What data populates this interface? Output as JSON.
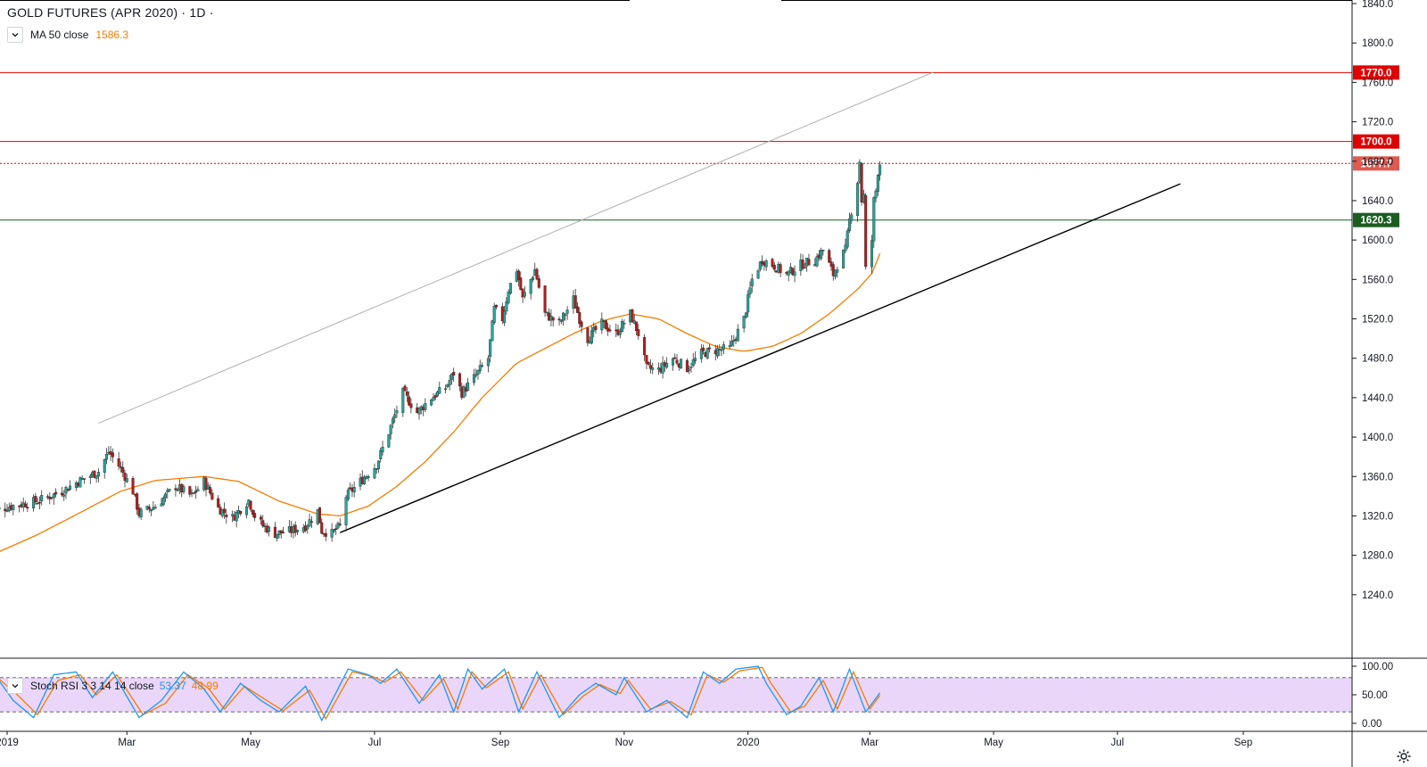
{
  "header": {
    "title": "GOLD FUTURES (APR 2020) · 1D ·",
    "ma_label": "MA 50 close",
    "ma_value": "1586.3",
    "stoch_label": "Stoch RSI 3 3 14 14 close",
    "stoch_k": "53.37",
    "stoch_d": "48.99"
  },
  "colors": {
    "up": "#26a69a",
    "down": "#b71c1c",
    "ma": "#f57c00",
    "resistance": "#e00000",
    "support_green": "#1b5e20",
    "stoch_k": "#2196f3",
    "stoch_d": "#f57c00",
    "stoch_band": "#e1c4f5"
  },
  "chart_data": {
    "type": "candlestick",
    "price_axis": {
      "min": 1200,
      "max": 1840,
      "ticks": [
        1240,
        1280,
        1320,
        1360,
        1400,
        1440,
        1480,
        1520,
        1560,
        1600,
        1640,
        1680,
        1720,
        1760,
        1800,
        1840
      ]
    },
    "time_axis": {
      "ticks": [
        {
          "label": "2019",
          "date": "2019-01-01"
        },
        {
          "label": "Mar",
          "date": "2019-03-01"
        },
        {
          "label": "May",
          "date": "2019-05-01"
        },
        {
          "label": "Jul",
          "date": "2019-07-01"
        },
        {
          "label": "Sep",
          "date": "2019-09-01"
        },
        {
          "label": "Nov",
          "date": "2019-11-01"
        },
        {
          "label": "2020",
          "date": "2020-01-01"
        },
        {
          "label": "Mar",
          "date": "2020-03-01"
        },
        {
          "label": "May",
          "date": "2020-05-01"
        },
        {
          "label": "Jul",
          "date": "2020-07-01"
        },
        {
          "label": "Sep",
          "date": "2020-09-01"
        }
      ]
    },
    "price_anchors": [
      [
        "2018-12-24",
        1325
      ],
      [
        "2019-01-03",
        1330
      ],
      [
        "2019-01-16",
        1335
      ],
      [
        "2019-01-28",
        1345
      ],
      [
        "2019-02-05",
        1355
      ],
      [
        "2019-02-15",
        1365
      ],
      [
        "2019-02-20",
        1385
      ],
      [
        "2019-02-26",
        1368
      ],
      [
        "2019-03-04",
        1345
      ],
      [
        "2019-03-07",
        1322
      ],
      [
        "2019-03-15",
        1330
      ],
      [
        "2019-03-25",
        1350
      ],
      [
        "2019-04-02",
        1340
      ],
      [
        "2019-04-08",
        1355
      ],
      [
        "2019-04-15",
        1328
      ],
      [
        "2019-04-22",
        1318
      ],
      [
        "2019-04-30",
        1336
      ],
      [
        "2019-05-03",
        1320
      ],
      [
        "2019-05-07",
        1310
      ],
      [
        "2019-05-13",
        1302
      ],
      [
        "2019-05-21",
        1305
      ],
      [
        "2019-05-28",
        1310
      ],
      [
        "2019-06-03",
        1325
      ],
      [
        "2019-06-05",
        1305
      ],
      [
        "2019-06-10",
        1302
      ],
      [
        "2019-06-14",
        1310
      ],
      [
        "2019-06-17",
        1340
      ],
      [
        "2019-06-24",
        1355
      ],
      [
        "2019-07-02",
        1372
      ],
      [
        "2019-07-08",
        1405
      ],
      [
        "2019-07-15",
        1445
      ],
      [
        "2019-07-22",
        1425
      ],
      [
        "2019-07-29",
        1440
      ],
      [
        "2019-08-05",
        1450
      ],
      [
        "2019-08-09",
        1465
      ],
      [
        "2019-08-13",
        1445
      ],
      [
        "2019-08-19",
        1460
      ],
      [
        "2019-08-26",
        1480
      ],
      [
        "2019-08-29",
        1530
      ],
      [
        "2019-09-02",
        1520
      ],
      [
        "2019-09-05",
        1550
      ],
      [
        "2019-09-09",
        1570
      ],
      [
        "2019-09-12",
        1540
      ],
      [
        "2019-09-16",
        1560
      ],
      [
        "2019-09-18",
        1570
      ],
      [
        "2019-09-23",
        1525
      ],
      [
        "2019-09-30",
        1515
      ],
      [
        "2019-10-07",
        1540
      ],
      [
        "2019-10-10",
        1520
      ],
      [
        "2019-10-14",
        1500
      ],
      [
        "2019-10-21",
        1515
      ],
      [
        "2019-10-28",
        1505
      ],
      [
        "2019-11-04",
        1525
      ],
      [
        "2019-11-08",
        1505
      ],
      [
        "2019-11-12",
        1470
      ],
      [
        "2019-11-18",
        1468
      ],
      [
        "2019-11-25",
        1480
      ],
      [
        "2019-12-02",
        1470
      ],
      [
        "2019-12-09",
        1485
      ],
      [
        "2019-12-16",
        1488
      ],
      [
        "2019-12-23",
        1490
      ],
      [
        "2019-12-30",
        1520
      ],
      [
        "2020-01-03",
        1560
      ],
      [
        "2020-01-08",
        1580
      ],
      [
        "2020-01-13",
        1575
      ],
      [
        "2020-01-20",
        1565
      ],
      [
        "2020-01-27",
        1575
      ],
      [
        "2020-02-03",
        1580
      ],
      [
        "2020-02-07",
        1590
      ],
      [
        "2020-02-12",
        1565
      ],
      [
        "2020-02-14",
        1575
      ],
      [
        "2020-02-18",
        1590
      ],
      [
        "2020-02-20",
        1620
      ],
      [
        "2020-02-24",
        1660
      ],
      [
        "2020-02-25",
        1680
      ],
      [
        "2020-02-26",
        1640
      ],
      [
        "2020-02-27",
        1645
      ],
      [
        "2020-02-28",
        1570
      ],
      [
        "2020-03-02",
        1600
      ],
      [
        "2020-03-03",
        1640
      ],
      [
        "2020-03-04",
        1650
      ],
      [
        "2020-03-05",
        1670
      ],
      [
        "2020-03-06",
        1677.7
      ]
    ],
    "ma_anchors": [
      [
        "2018-12-24",
        1280
      ],
      [
        "2019-01-15",
        1300
      ],
      [
        "2019-02-01",
        1318
      ],
      [
        "2019-02-26",
        1345
      ],
      [
        "2019-03-15",
        1356
      ],
      [
        "2019-04-08",
        1360
      ],
      [
        "2019-04-25",
        1355
      ],
      [
        "2019-05-15",
        1335
      ],
      [
        "2019-06-03",
        1322
      ],
      [
        "2019-06-14",
        1320
      ],
      [
        "2019-06-28",
        1330
      ],
      [
        "2019-07-12",
        1350
      ],
      [
        "2019-07-26",
        1375
      ],
      [
        "2019-08-09",
        1405
      ],
      [
        "2019-08-23",
        1440
      ],
      [
        "2019-09-09",
        1475
      ],
      [
        "2019-09-23",
        1490
      ],
      [
        "2019-10-07",
        1505
      ],
      [
        "2019-10-21",
        1518
      ],
      [
        "2019-11-04",
        1525
      ],
      [
        "2019-11-18",
        1520
      ],
      [
        "2019-12-02",
        1505
      ],
      [
        "2019-12-16",
        1492
      ],
      [
        "2019-12-30",
        1487
      ],
      [
        "2020-01-13",
        1492
      ],
      [
        "2020-01-27",
        1505
      ],
      [
        "2020-02-10",
        1525
      ],
      [
        "2020-02-24",
        1550
      ],
      [
        "2020-03-02",
        1566
      ],
      [
        "2020-03-06",
        1586.3
      ]
    ],
    "horizontal_levels": [
      {
        "value": 1770.0,
        "label": "1770.0",
        "style": "resistance"
      },
      {
        "value": 1700.0,
        "label": "1700.0",
        "style": "resistance"
      },
      {
        "value": 1677.7,
        "label": "1677.7",
        "style": "last"
      },
      {
        "value": 1620.3,
        "label": "1620.3",
        "style": "support"
      }
    ],
    "trend_lines": [
      {
        "role": "support",
        "start": {
          "date": "2019-06-14",
          "value": 1303
        },
        "end": {
          "date": "2020-08-01",
          "value": 1657
        }
      },
      {
        "role": "channel",
        "start": {
          "date": "2019-02-15",
          "value": 1414
        },
        "end": {
          "date": "2020-04-01",
          "value": 1770
        }
      }
    ],
    "stoch_rsi": {
      "axis": {
        "ticks": [
          0,
          50,
          100
        ],
        "labels": [
          "0.00",
          "50.00",
          "100.00"
        ]
      },
      "bands": [
        20,
        80
      ],
      "k_anchors": [
        [
          "2018-12-24",
          95
        ],
        [
          "2019-01-04",
          40
        ],
        [
          "2019-01-14",
          10
        ],
        [
          "2019-01-24",
          85
        ],
        [
          "2019-02-04",
          90
        ],
        [
          "2019-02-12",
          45
        ],
        [
          "2019-02-22",
          90
        ],
        [
          "2019-03-07",
          10
        ],
        [
          "2019-03-18",
          40
        ],
        [
          "2019-03-29",
          90
        ],
        [
          "2019-04-08",
          60
        ],
        [
          "2019-04-16",
          20
        ],
        [
          "2019-04-26",
          70
        ],
        [
          "2019-05-06",
          40
        ],
        [
          "2019-05-15",
          20
        ],
        [
          "2019-05-28",
          65
        ],
        [
          "2019-06-05",
          5
        ],
        [
          "2019-06-18",
          95
        ],
        [
          "2019-06-28",
          85
        ],
        [
          "2019-07-04",
          70
        ],
        [
          "2019-07-12",
          95
        ],
        [
          "2019-07-23",
          35
        ],
        [
          "2019-08-02",
          85
        ],
        [
          "2019-08-09",
          20
        ],
        [
          "2019-08-16",
          95
        ],
        [
          "2019-08-23",
          60
        ],
        [
          "2019-09-03",
          95
        ],
        [
          "2019-09-10",
          20
        ],
        [
          "2019-09-19",
          90
        ],
        [
          "2019-09-30",
          10
        ],
        [
          "2019-10-10",
          50
        ],
        [
          "2019-10-18",
          70
        ],
        [
          "2019-10-28",
          50
        ],
        [
          "2019-11-01",
          80
        ],
        [
          "2019-11-12",
          20
        ],
        [
          "2019-11-22",
          40
        ],
        [
          "2019-12-02",
          10
        ],
        [
          "2019-12-10",
          90
        ],
        [
          "2019-12-18",
          70
        ],
        [
          "2019-12-26",
          95
        ],
        [
          "2020-01-06",
          100
        ],
        [
          "2020-01-10",
          70
        ],
        [
          "2020-01-20",
          15
        ],
        [
          "2020-01-27",
          30
        ],
        [
          "2020-02-05",
          80
        ],
        [
          "2020-02-12",
          20
        ],
        [
          "2020-02-20",
          95
        ],
        [
          "2020-02-28",
          20
        ],
        [
          "2020-03-06",
          53.37
        ]
      ],
      "d_anchors": [
        [
          "2018-12-24",
          90
        ],
        [
          "2019-01-06",
          50
        ],
        [
          "2019-01-16",
          15
        ],
        [
          "2019-01-26",
          75
        ],
        [
          "2019-02-06",
          85
        ],
        [
          "2019-02-14",
          50
        ],
        [
          "2019-02-24",
          85
        ],
        [
          "2019-03-09",
          15
        ],
        [
          "2019-03-20",
          35
        ],
        [
          "2019-03-31",
          85
        ],
        [
          "2019-04-10",
          62
        ],
        [
          "2019-04-18",
          25
        ],
        [
          "2019-04-28",
          65
        ],
        [
          "2019-05-08",
          42
        ],
        [
          "2019-05-17",
          22
        ],
        [
          "2019-05-30",
          58
        ],
        [
          "2019-06-07",
          8
        ],
        [
          "2019-06-20",
          90
        ],
        [
          "2019-06-30",
          82
        ],
        [
          "2019-07-06",
          72
        ],
        [
          "2019-07-14",
          90
        ],
        [
          "2019-07-25",
          40
        ],
        [
          "2019-08-04",
          78
        ],
        [
          "2019-08-11",
          25
        ],
        [
          "2019-08-18",
          90
        ],
        [
          "2019-08-25",
          62
        ],
        [
          "2019-09-05",
          90
        ],
        [
          "2019-09-12",
          25
        ],
        [
          "2019-09-21",
          85
        ],
        [
          "2019-10-02",
          15
        ],
        [
          "2019-10-12",
          48
        ],
        [
          "2019-10-20",
          68
        ],
        [
          "2019-10-30",
          52
        ],
        [
          "2019-11-03",
          75
        ],
        [
          "2019-11-14",
          25
        ],
        [
          "2019-11-24",
          38
        ],
        [
          "2019-12-04",
          15
        ],
        [
          "2019-12-12",
          85
        ],
        [
          "2019-12-20",
          72
        ],
        [
          "2019-12-28",
          92
        ],
        [
          "2020-01-08",
          98
        ],
        [
          "2020-01-12",
          72
        ],
        [
          "2020-01-22",
          20
        ],
        [
          "2020-01-29",
          30
        ],
        [
          "2020-02-07",
          75
        ],
        [
          "2020-02-14",
          25
        ],
        [
          "2020-02-22",
          90
        ],
        [
          "2020-03-01",
          25
        ],
        [
          "2020-03-06",
          48.99
        ]
      ]
    }
  }
}
